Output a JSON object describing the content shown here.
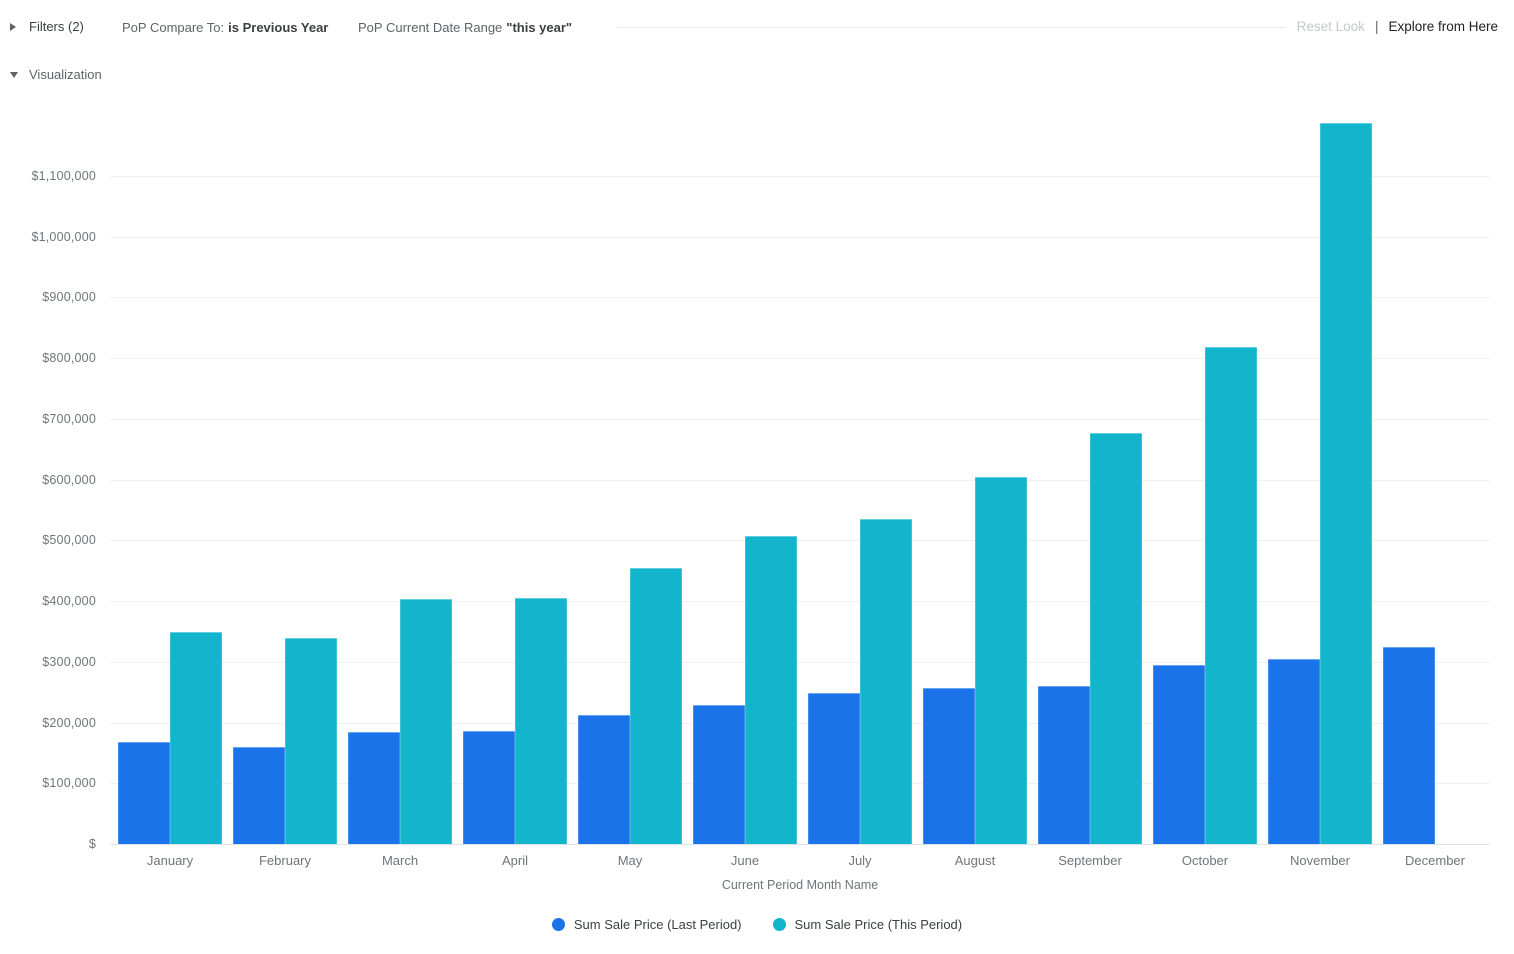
{
  "header": {
    "filters_toggle_label": "Filters (2)",
    "filters": [
      {
        "label": "PoP Compare To:",
        "value": "is Previous Year"
      },
      {
        "label": "PoP Current Date Range",
        "value": "\"this year\""
      }
    ],
    "reset_label": "Reset Look",
    "separator": "|",
    "explore_label": "Explore from Here"
  },
  "visualization": {
    "toggle_label": "Visualization"
  },
  "icons": {
    "filters_icon": "triangle-right-icon",
    "visualization_icon": "triangle-down-icon"
  },
  "chart_data": {
    "type": "bar",
    "title": "",
    "xlabel": "Current Period Month Name",
    "ylabel": "",
    "categories": [
      "January",
      "February",
      "March",
      "April",
      "May",
      "June",
      "July",
      "August",
      "September",
      "October",
      "November",
      "December"
    ],
    "series": [
      {
        "name": "Sum Sale Price (Last Period)",
        "color": "#1a73e8",
        "values": [
          168000,
          160000,
          185000,
          186000,
          212000,
          229000,
          249000,
          257000,
          260000,
          295000,
          304000,
          324000
        ]
      },
      {
        "name": "Sum Sale Price (This Period)",
        "color": "#12b5cb",
        "values": [
          349000,
          339000,
          403000,
          405000,
          454000,
          507000,
          535000,
          604000,
          676000,
          818000,
          1187000,
          null
        ]
      }
    ],
    "y_axis": {
      "ticks": [
        {
          "value": 0,
          "label": "$"
        },
        {
          "value": 100000,
          "label": "$100,000"
        },
        {
          "value": 200000,
          "label": "$200,000"
        },
        {
          "value": 300000,
          "label": "$300,000"
        },
        {
          "value": 400000,
          "label": "$400,000"
        },
        {
          "value": 500000,
          "label": "$500,000"
        },
        {
          "value": 600000,
          "label": "$600,000"
        },
        {
          "value": 700000,
          "label": "$700,000"
        },
        {
          "value": 800000,
          "label": "$800,000"
        },
        {
          "value": 900000,
          "label": "$900,000"
        },
        {
          "value": 1000000,
          "label": "$1,000,000"
        },
        {
          "value": 1100000,
          "label": "$1,100,000"
        }
      ]
    },
    "ylim": [
      0,
      1187000
    ],
    "grid": true,
    "legend_position": "bottom"
  }
}
